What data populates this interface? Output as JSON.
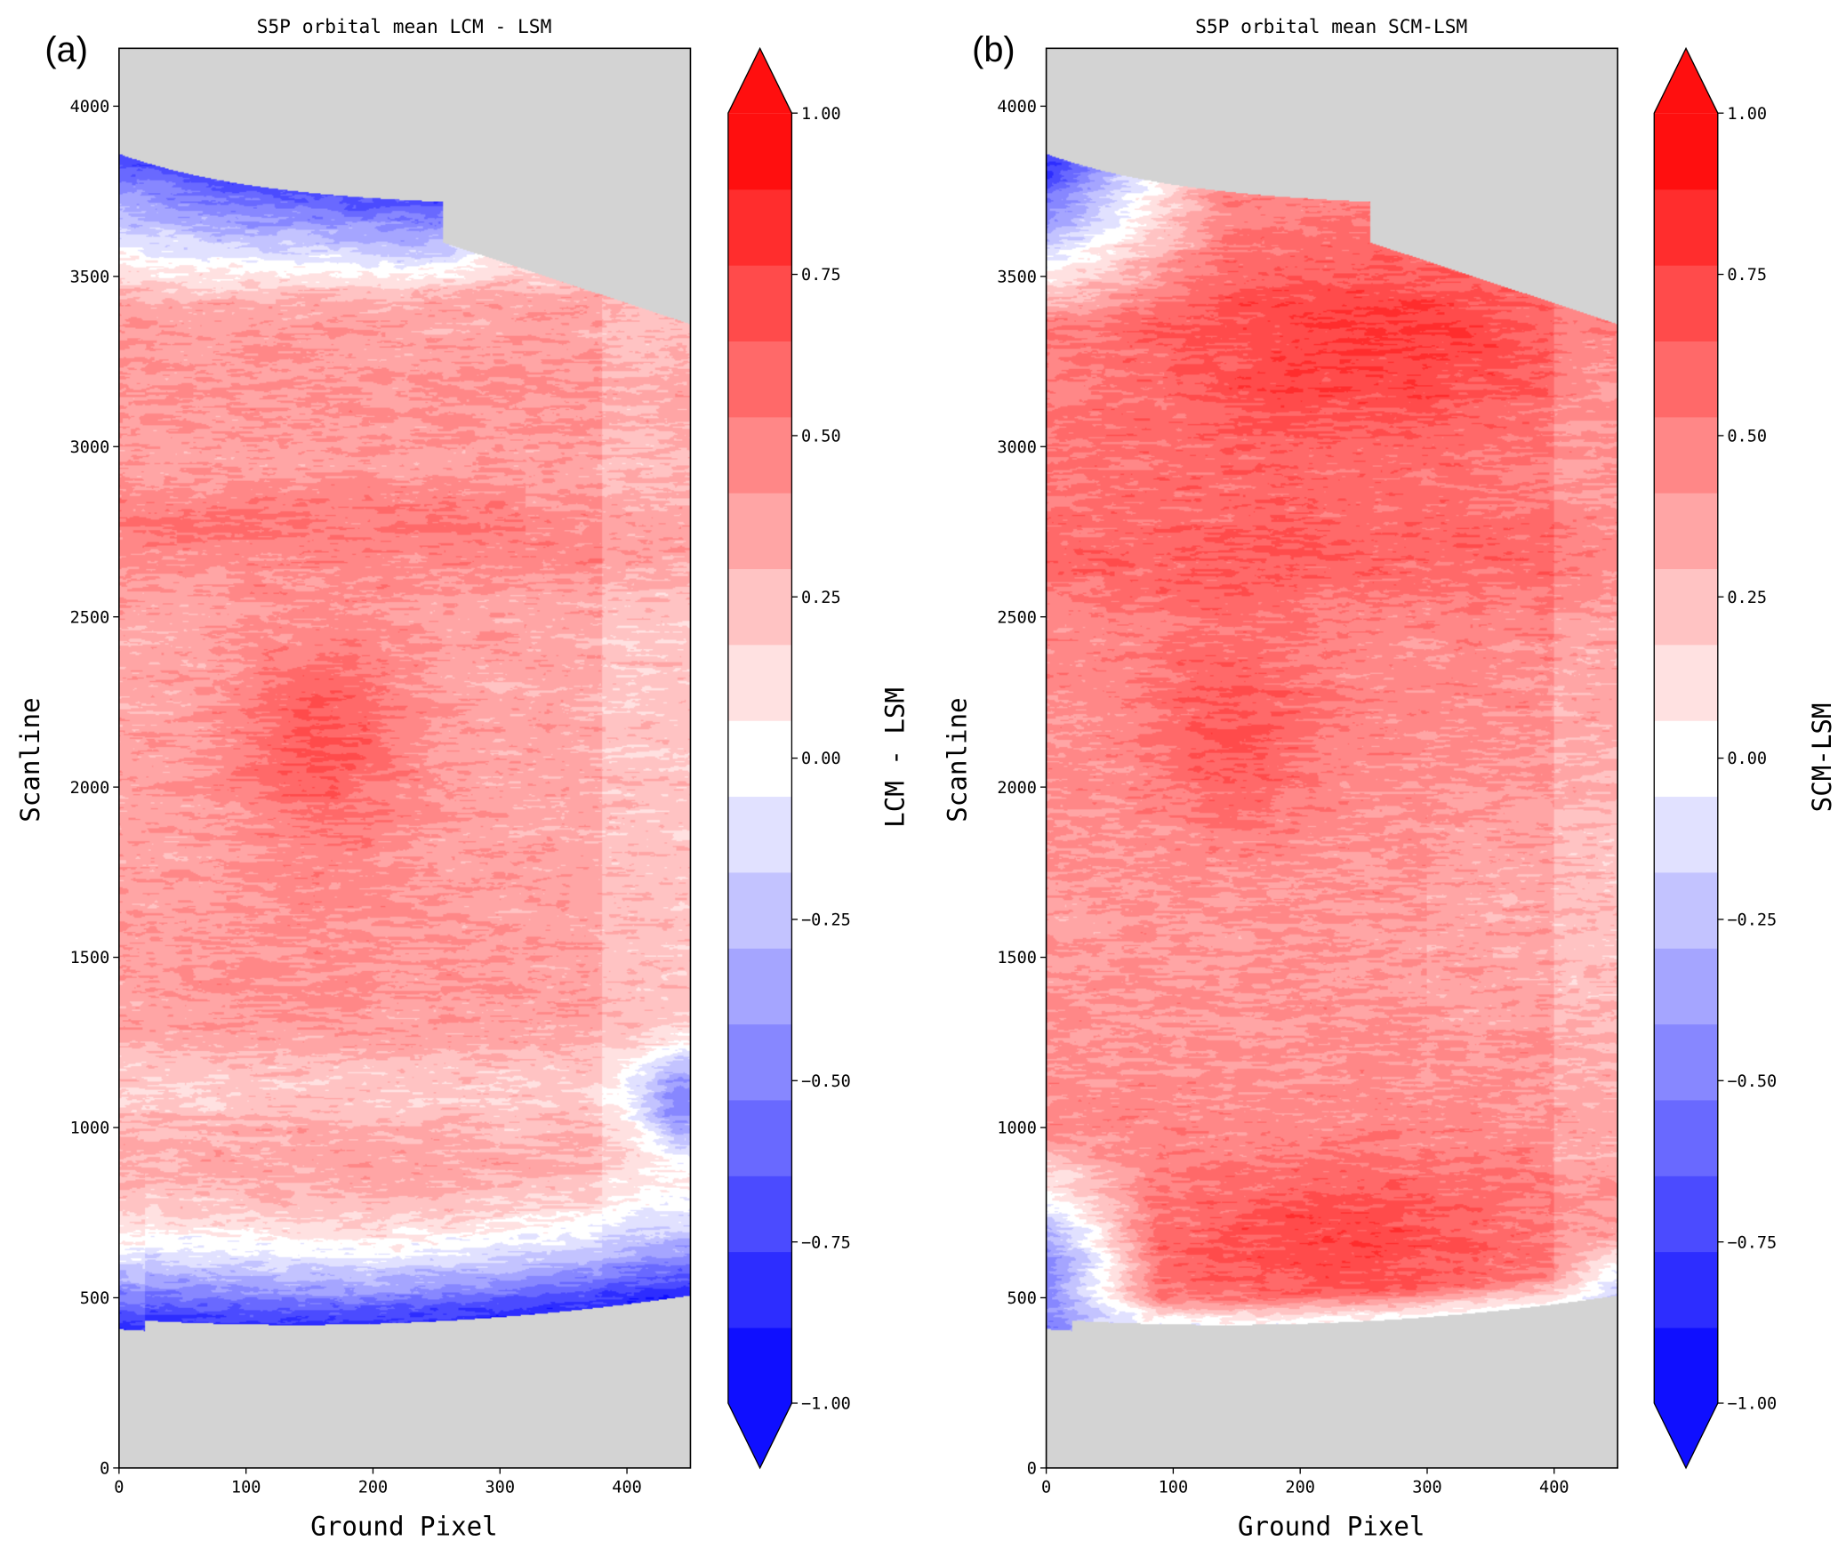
{
  "chart_data": [
    {
      "type": "heatmap",
      "panel_label": "(a)",
      "title": "S5P orbital mean LCM - LSM",
      "xlabel": "Ground Pixel",
      "ylabel": "Scanline",
      "xlim": [
        0,
        450
      ],
      "ylim": [
        0,
        4170
      ],
      "xticks": [
        "0",
        "100",
        "200",
        "300",
        "400"
      ],
      "yticks": [
        "0",
        "500",
        "1000",
        "1500",
        "2000",
        "2500",
        "3000",
        "3500",
        "4000"
      ],
      "colorbar": {
        "label": "LCM - LSM",
        "range": [
          -1.0,
          1.0
        ],
        "levels": 17,
        "extend": "both",
        "ticks": [
          "1.00",
          "0.75",
          "0.50",
          "0.25",
          "0.00",
          "−0.25",
          "−0.50",
          "−0.75",
          "−1.00"
        ]
      },
      "colormap": "bwr",
      "missing_color": "#d3d3d3",
      "features": "mostly positive 0.25-0.5; maximum ~0.7 near ground pixel 160, scanline 2150; negative (blue) bands near top (scanline >3500) and bottom (scanline <800) edges"
    },
    {
      "type": "heatmap",
      "panel_label": "(b)",
      "title": "S5P orbital mean SCM-LSM",
      "xlabel": "Ground Pixel",
      "ylabel": "Scanline",
      "xlim": [
        0,
        450
      ],
      "ylim": [
        0,
        4170
      ],
      "xticks": [
        "0",
        "100",
        "200",
        "300",
        "400"
      ],
      "yticks": [
        "0",
        "500",
        "1000",
        "1500",
        "2000",
        "2500",
        "3000",
        "3500",
        "4000"
      ],
      "colorbar": {
        "label": "SCM-LSM",
        "range": [
          -1.0,
          1.0
        ],
        "levels": 17,
        "extend": "both",
        "ticks": [
          "1.00",
          "0.75",
          "0.50",
          "0.25",
          "0.00",
          "−0.25",
          "−0.50",
          "−0.75",
          "−1.00"
        ]
      },
      "colormap": "bwr",
      "missing_color": "#d3d3d3",
      "features": "mostly positive 0.4-0.75; maxima near scanline 3300 and ground pixel 230 / scanline 650; negative only at left-edge corners"
    }
  ]
}
